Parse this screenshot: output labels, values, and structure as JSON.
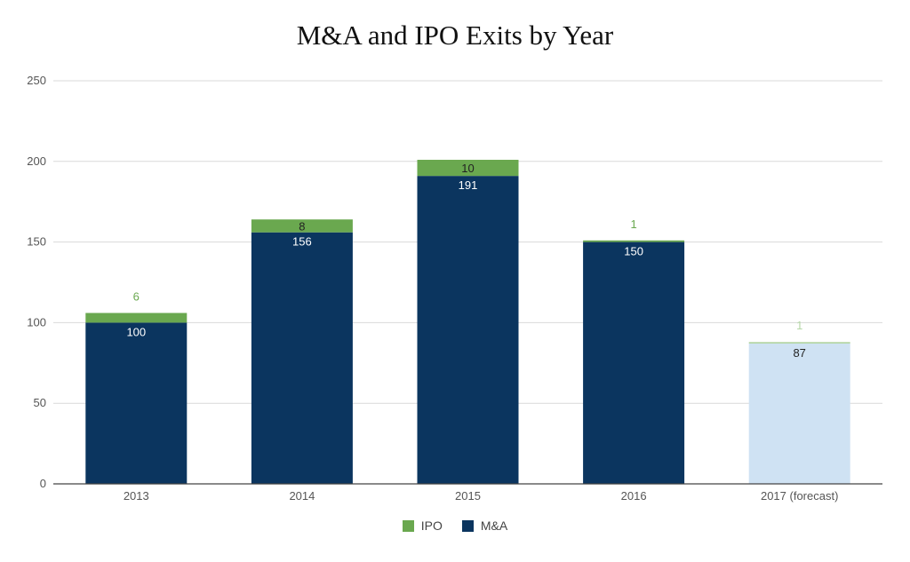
{
  "chart_data": {
    "type": "bar",
    "stacked": true,
    "title": "M&A and IPO Exits by Year",
    "xlabel": "",
    "ylabel": "",
    "categories": [
      "2013",
      "2014",
      "2015",
      "2016",
      "2017 (forecast)"
    ],
    "ylim": [
      0,
      250
    ],
    "yticks": [
      "0",
      "50",
      "100",
      "150",
      "200",
      "250"
    ],
    "grid": true,
    "legend_position": "bottom",
    "series": [
      {
        "name": "M&A",
        "values": [
          100,
          156,
          191,
          150,
          87
        ],
        "color": "#0b355f",
        "label_color": "#ffffff"
      },
      {
        "name": "IPO",
        "values": [
          6,
          8,
          10,
          1,
          1
        ],
        "color": "#6aa84f",
        "label_color": "#6aa84f"
      }
    ],
    "forecast": {
      "category": "2017 (forecast)",
      "ma_color": "#cfe2f3",
      "ipo_color": "#b6d7a8",
      "ma_label_color": "#222222",
      "ipo_label_color": "#b6d7a8"
    },
    "data_label_2015_ipo_color": "#222222"
  }
}
